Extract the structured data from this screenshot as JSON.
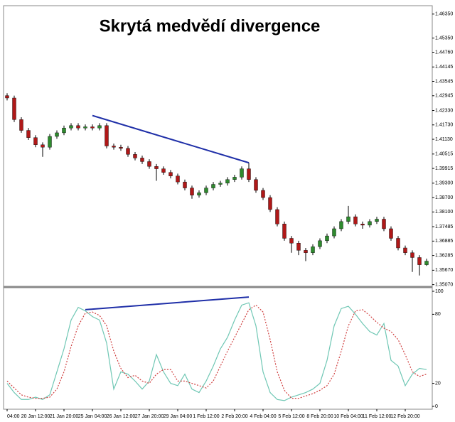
{
  "chart_data": [
    {
      "type": "candlestick",
      "title": "Skrytá medvědí divergence",
      "bull_color": "#2e8b2e",
      "bear_color": "#b01818",
      "open": [
        1.4295,
        1.4285,
        1.4195,
        1.415,
        1.412,
        1.409,
        1.408,
        1.4125,
        1.414,
        1.416,
        1.417,
        1.416,
        1.4165,
        1.416,
        1.417,
        1.4085,
        1.408,
        1.4075,
        1.405,
        1.4035,
        1.402,
        1.4,
        1.399,
        1.3975,
        1.396,
        1.3935,
        1.391,
        1.388,
        1.389,
        1.391,
        1.3925,
        1.393,
        1.3945,
        1.3955,
        1.399,
        1.3945,
        1.39,
        1.387,
        1.382,
        1.376,
        1.37,
        1.368,
        1.365,
        1.364,
        1.3665,
        1.369,
        1.371,
        1.374,
        1.377,
        1.379,
        1.376,
        1.3755,
        1.377,
        1.378,
        1.374,
        1.37,
        1.366,
        1.364,
        1.362,
        1.359
      ],
      "high": [
        1.4305,
        1.4295,
        1.4205,
        1.416,
        1.413,
        1.41,
        1.4135,
        1.415,
        1.417,
        1.418,
        1.418,
        1.4175,
        1.4175,
        1.418,
        1.418,
        1.4095,
        1.409,
        1.4085,
        1.406,
        1.4045,
        1.403,
        1.401,
        1.4,
        1.3985,
        1.397,
        1.3945,
        1.392,
        1.39,
        1.392,
        1.3935,
        1.394,
        1.3955,
        1.3965,
        1.4,
        1.4015,
        1.3955,
        1.391,
        1.388,
        1.383,
        1.377,
        1.371,
        1.369,
        1.366,
        1.3675,
        1.37,
        1.372,
        1.375,
        1.378,
        1.3835,
        1.38,
        1.377,
        1.378,
        1.379,
        1.379,
        1.375,
        1.371,
        1.367,
        1.365,
        1.363,
        1.3615
      ],
      "low": [
        1.4275,
        1.4185,
        1.414,
        1.411,
        1.408,
        1.404,
        1.407,
        1.4115,
        1.413,
        1.415,
        1.415,
        1.415,
        1.415,
        1.415,
        1.4075,
        1.407,
        1.4065,
        1.404,
        1.4025,
        1.401,
        1.399,
        1.394,
        1.3965,
        1.395,
        1.3925,
        1.39,
        1.3865,
        1.387,
        1.388,
        1.39,
        1.3915,
        1.392,
        1.3935,
        1.3945,
        1.3935,
        1.389,
        1.386,
        1.381,
        1.375,
        1.369,
        1.364,
        1.363,
        1.3605,
        1.363,
        1.3655,
        1.368,
        1.37,
        1.373,
        1.376,
        1.375,
        1.374,
        1.3745,
        1.376,
        1.373,
        1.369,
        1.365,
        1.363,
        1.356,
        1.3545,
        1.3585
      ],
      "close": [
        1.4285,
        1.4195,
        1.415,
        1.412,
        1.409,
        1.408,
        1.4125,
        1.414,
        1.416,
        1.417,
        1.416,
        1.4165,
        1.416,
        1.417,
        1.4085,
        1.408,
        1.4075,
        1.405,
        1.4035,
        1.402,
        1.4,
        1.399,
        1.3975,
        1.396,
        1.3935,
        1.391,
        1.388,
        1.389,
        1.391,
        1.3925,
        1.393,
        1.3945,
        1.3955,
        1.399,
        1.3945,
        1.39,
        1.387,
        1.382,
        1.376,
        1.37,
        1.368,
        1.365,
        1.364,
        1.3665,
        1.369,
        1.371,
        1.374,
        1.377,
        1.379,
        1.376,
        1.3755,
        1.377,
        1.378,
        1.374,
        1.37,
        1.366,
        1.364,
        1.362,
        1.359,
        1.3605
      ],
      "ylim": [
        1.35,
        1.467
      ],
      "yticks": [
        {
          "value": 1.4635,
          "label": "1.46350"
        },
        {
          "value": 1.4535,
          "label": "1.45350"
        },
        {
          "value": 1.4476,
          "label": "1.44760"
        },
        1.44145,
        1.43545,
        1.42945,
        {
          "value": 1.4233,
          "label": "1.42330"
        },
        {
          "value": 1.4173,
          "label": "1.41730"
        },
        {
          "value": 1.4113,
          "label": "1.41130"
        },
        1.40515,
        1.39915,
        {
          "value": 1.393,
          "label": "1.39300"
        },
        {
          "value": 1.387,
          "label": "1.38700"
        },
        {
          "value": 1.381,
          "label": "1.38100"
        },
        1.37485,
        1.36885,
        1.36285,
        {
          "value": 1.3567,
          "label": "1.35670"
        },
        {
          "value": 1.3507,
          "label": "1.35070"
        }
      ],
      "trendline": {
        "color": "#1f2fa8",
        "x": [
          12,
          34
        ],
        "y": [
          1.4212,
          1.4015
        ]
      }
    },
    {
      "type": "line",
      "categories": [
        "04:00",
        null,
        null,
        null,
        "20 Jan 12:00",
        null,
        null,
        null,
        "21 Jan 20:00",
        null,
        null,
        null,
        "25 Jan 04:00",
        null,
        null,
        null,
        "26 Jan 12:00",
        null,
        null,
        null,
        "27 Jan 20:00",
        null,
        null,
        null,
        "29 Jan 04:00",
        null,
        null,
        null,
        "1 Feb 12:00",
        null,
        null,
        null,
        "2 Feb 20:00",
        null,
        null,
        null,
        "4 Feb 04:00",
        null,
        null,
        null,
        "5 Feb 12:00",
        null,
        null,
        null,
        "8 Feb 20:00",
        null,
        null,
        null,
        "10 Feb 04:00",
        null,
        null,
        null,
        "11 Feb 12:00",
        null,
        null,
        null,
        "12 Feb 20:00",
        null,
        null,
        null
      ],
      "series": [
        {
          "color": "#6fc7b4",
          "values": [
            20,
            12,
            6,
            6,
            8,
            6,
            10,
            30,
            50,
            75,
            86,
            83,
            78,
            75,
            55,
            15,
            30,
            28,
            22,
            15,
            22,
            45,
            30,
            20,
            18,
            28,
            15,
            12,
            22,
            35,
            50,
            60,
            75,
            88,
            90,
            70,
            30,
            12,
            6,
            5,
            8,
            10,
            12,
            15,
            20,
            40,
            70,
            85,
            87,
            80,
            72,
            65,
            62,
            72,
            40,
            35,
            18,
            28,
            33,
            32
          ]
        },
        {
          "color": "#d04040",
          "dashed": true,
          "values": [
            22,
            16,
            10,
            8,
            7,
            7,
            8,
            15,
            30,
            52,
            70,
            81,
            82,
            79,
            70,
            48,
            33,
            25,
            27,
            22,
            20,
            28,
            32,
            32,
            22,
            22,
            20,
            18,
            16,
            22,
            35,
            48,
            60,
            72,
            84,
            88,
            82,
            58,
            30,
            14,
            7,
            7,
            9,
            11,
            14,
            18,
            28,
            48,
            70,
            83,
            84,
            79,
            73,
            68,
            65,
            58,
            45,
            30,
            26,
            28
          ]
        }
      ],
      "ylim": [
        0,
        100
      ],
      "yticks": [
        100,
        80,
        20,
        0
      ],
      "trendline": {
        "color": "#1f2fa8",
        "x": [
          11,
          34
        ],
        "y": [
          84,
          95
        ]
      }
    }
  ]
}
